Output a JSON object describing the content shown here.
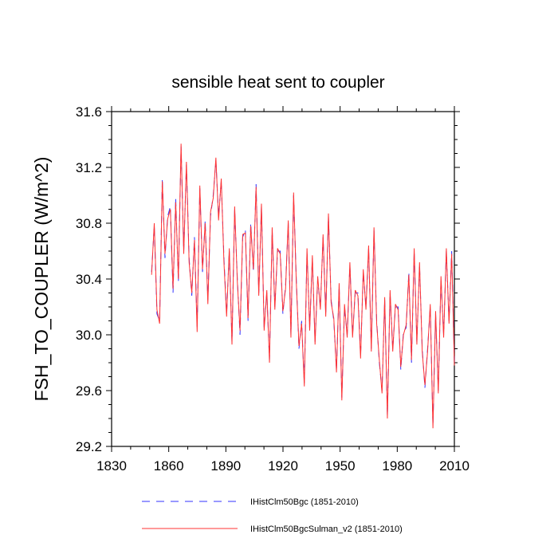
{
  "chart_data": {
    "type": "line",
    "title": "sensible heat sent to coupler",
    "xlabel": "",
    "ylabel": "FSH_TO_COUPLER  (W/m^2)",
    "xlim": [
      1830,
      2010
    ],
    "ylim": [
      29.2,
      31.6
    ],
    "xticks": [
      "1830",
      "1860",
      "1890",
      "1920",
      "1950",
      "1980",
      "2010"
    ],
    "yticks": [
      "29.2",
      "29.6",
      "30.0",
      "30.4",
      "30.8",
      "31.2",
      "31.6"
    ],
    "x_start": 1851,
    "x_end": 2010,
    "grid": false,
    "legend_position": "bottom",
    "series": [
      {
        "name": "IHistClm50Bgc (1851-2010)",
        "color": "#3333ff",
        "style": "dashed",
        "values": [
          30.45,
          30.78,
          30.15,
          30.1,
          31.12,
          30.55,
          30.85,
          30.92,
          30.3,
          30.98,
          30.38,
          31.35,
          30.6,
          31.22,
          30.55,
          30.28,
          30.7,
          30.05,
          31.05,
          30.45,
          30.82,
          30.25,
          30.85,
          31.0,
          31.25,
          30.85,
          31.1,
          30.55,
          30.15,
          30.6,
          29.95,
          30.9,
          30.4,
          30.0,
          30.7,
          30.75,
          30.1,
          30.8,
          30.45,
          31.08,
          30.3,
          30.92,
          30.05,
          30.3,
          29.82,
          30.75,
          30.2,
          30.6,
          30.6,
          30.15,
          30.35,
          30.8,
          30.0,
          31.0,
          30.4,
          29.9,
          30.1,
          29.65,
          30.6,
          30.05,
          30.55,
          29.95,
          30.4,
          30.2,
          30.7,
          30.15,
          30.85,
          30.25,
          30.1,
          29.75,
          30.35,
          29.55,
          30.2,
          30.0,
          30.5,
          30.0,
          30.3,
          30.3,
          29.85,
          30.45,
          30.2,
          30.62,
          29.9,
          30.75,
          30.1,
          29.8,
          29.6,
          30.25,
          29.42,
          30.3,
          29.9,
          30.2,
          30.2,
          29.75,
          30.02,
          30.05,
          30.45,
          29.8,
          30.6,
          29.95,
          30.5,
          29.9,
          29.62,
          29.9,
          30.2,
          29.35,
          30.15,
          29.6,
          30.4,
          30.0,
          30.6,
          30.1,
          30.6,
          29.8
        ],
        "note_values_span": "annual values 1851 to 2010 are summarized as a dense sampled series"
      },
      {
        "name": "IHistClm50BgcSulman_v2 (1851-2010)",
        "color": "#ff3333",
        "style": "solid",
        "values": [
          30.43,
          30.8,
          30.18,
          30.08,
          31.1,
          30.58,
          30.83,
          30.9,
          30.33,
          30.95,
          30.4,
          31.37,
          30.58,
          31.24,
          30.52,
          30.3,
          30.68,
          30.02,
          31.07,
          30.47,
          30.8,
          30.22,
          30.88,
          30.98,
          31.27,
          30.82,
          31.12,
          30.52,
          30.13,
          30.62,
          29.93,
          30.92,
          30.38,
          30.03,
          30.72,
          30.73,
          30.12,
          30.78,
          30.47,
          31.06,
          30.28,
          30.94,
          30.03,
          30.32,
          29.8,
          30.77,
          30.18,
          30.62,
          30.58,
          30.17,
          30.33,
          30.82,
          29.98,
          31.02,
          30.38,
          29.92,
          30.08,
          29.63,
          30.62,
          30.03,
          30.57,
          29.93,
          30.42,
          30.18,
          30.72,
          30.13,
          30.87,
          30.23,
          30.12,
          29.73,
          30.37,
          29.53,
          30.22,
          29.98,
          30.52,
          29.98,
          30.32,
          30.28,
          29.83,
          30.47,
          30.18,
          30.64,
          29.88,
          30.77,
          30.08,
          29.82,
          29.58,
          30.27,
          29.4,
          30.32,
          29.88,
          30.22,
          30.18,
          29.77,
          30.0,
          30.07,
          30.43,
          29.82,
          30.62,
          29.93,
          30.52,
          29.88,
          29.64,
          29.88,
          30.22,
          29.33,
          30.17,
          29.58,
          30.42,
          29.98,
          30.62,
          30.08,
          30.58,
          29.78
        ]
      }
    ]
  }
}
